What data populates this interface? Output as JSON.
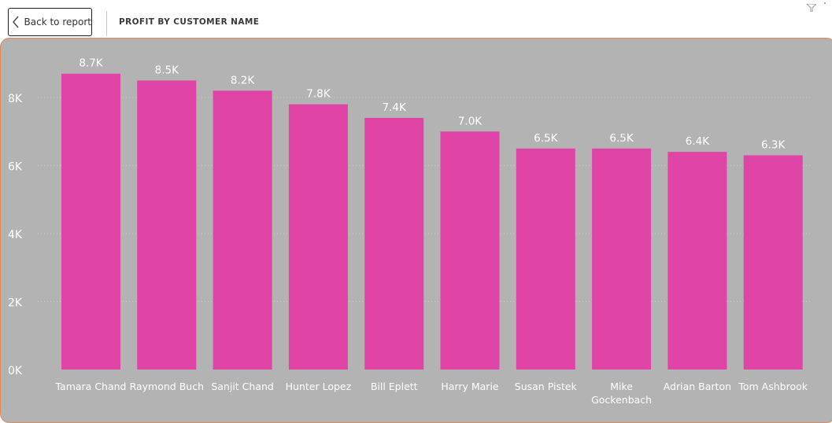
{
  "header": {
    "back_label": "Back to report",
    "title": "PROFIT BY CUSTOMER NAME"
  },
  "icons": {
    "back": "chevron-left-icon",
    "filter": "filter-icon",
    "more": "more-options-icon"
  },
  "colors": {
    "bar": "#e044a7",
    "panel_background": "#b3b3b3",
    "panel_border": "#d98a57"
  },
  "chart_data": {
    "type": "bar",
    "title": "PROFIT BY CUSTOMER NAME",
    "xlabel": "",
    "ylabel": "",
    "categories": [
      [
        "Tamara Chand"
      ],
      [
        "Raymond Buch"
      ],
      [
        "Sanjit Chand"
      ],
      [
        "Hunter Lopez"
      ],
      [
        "Bill Eplett"
      ],
      [
        "Harry Marie"
      ],
      [
        "Susan Pistek"
      ],
      [
        "Mike",
        "Gockenbach"
      ],
      [
        "Adrian Barton"
      ],
      [
        "Tom Ashbrook"
      ]
    ],
    "values": [
      8700,
      8500,
      8200,
      7800,
      7400,
      7000,
      6500,
      6500,
      6400,
      6300
    ],
    "data_labels": [
      "8.7K",
      "8.5K",
      "8.2K",
      "7.8K",
      "7.4K",
      "7.0K",
      "6.5K",
      "6.5K",
      "6.4K",
      "6.3K"
    ],
    "ylim": [
      0,
      9500
    ],
    "yticks": [
      0,
      2000,
      4000,
      6000,
      8000
    ],
    "ytick_labels": [
      "0K",
      "2K",
      "4K",
      "6K",
      "8K"
    ],
    "grid": true,
    "legend": "none"
  }
}
